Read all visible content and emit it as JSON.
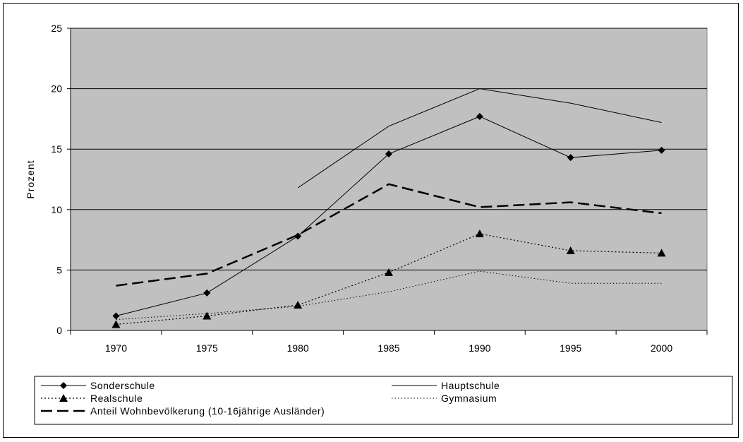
{
  "chart_data": {
    "type": "line",
    "xlabel": "",
    "ylabel": "Prozent",
    "ylim": [
      0,
      25
    ],
    "yticks": [
      "0",
      "5",
      "10",
      "15",
      "20",
      "25"
    ],
    "categories": [
      "1970",
      "1975",
      "1980",
      "1985",
      "1990",
      "1995",
      "2000"
    ],
    "grid": "horizontal",
    "background_color": "#c0c0c0",
    "legend_position": "bottom",
    "series": [
      {
        "name": "Sonderschule",
        "marker": "diamond",
        "style": "solid-thin",
        "values": [
          1.2,
          3.1,
          7.8,
          14.6,
          17.7,
          14.3,
          14.9
        ]
      },
      {
        "name": "Hauptschule",
        "marker": "none",
        "style": "solid-thin",
        "values": [
          null,
          null,
          11.8,
          16.9,
          20.0,
          18.8,
          17.2
        ]
      },
      {
        "name": "Realschule",
        "marker": "triangle",
        "style": "dotted",
        "values": [
          0.5,
          1.2,
          2.1,
          4.8,
          8.0,
          6.6,
          6.4
        ]
      },
      {
        "name": "Gymnasium",
        "marker": "none",
        "style": "dotted-fine",
        "values": [
          0.9,
          1.4,
          2.0,
          3.2,
          4.9,
          3.9,
          3.9
        ]
      },
      {
        "name": "Anteil Wohnbevölkerung (10-16jährige Ausländer)",
        "marker": "none",
        "style": "dashed-thick",
        "values": [
          3.7,
          4.7,
          7.9,
          12.1,
          10.2,
          10.6,
          9.7
        ]
      }
    ]
  }
}
